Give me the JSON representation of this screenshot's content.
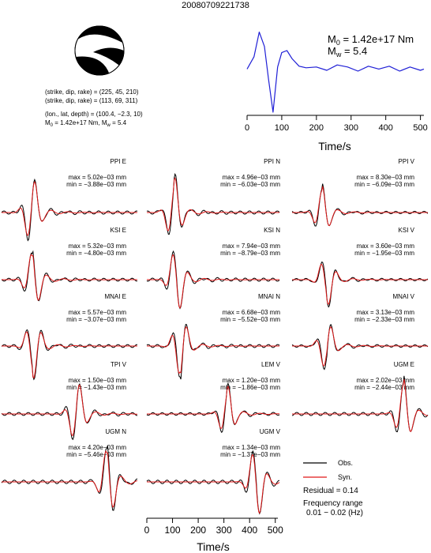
{
  "title": "20080709221738",
  "mechanism": {
    "line1": "(strike, dip, rake) = (225, 45, 210)",
    "line2": "(strike, dip, rake) = (113, 69, 311)",
    "line3": "(lon., lat, depth) = (100.4, −2.3, 10)",
    "line4_m0": "M",
    "line4_m0_sub": "0",
    "line4_m0_val": " = 1.42e+17 Nm, M",
    "line4_mw_sub": "w",
    "line4_mw_val": " = 5.4"
  },
  "stf": {
    "m0_label": "M",
    "m0_sub": "0",
    "m0_value": " = 1.42e+17 Nm",
    "mw_label": "M",
    "mw_sub": "w",
    "mw_value": " = 5.4",
    "xlabel": "Time/s",
    "xticks": [
      "0",
      "100",
      "200",
      "300",
      "400",
      "500"
    ],
    "xrange": [
      0,
      510
    ],
    "color": "#1f1fd6"
  },
  "chart_data": {
    "type": "line",
    "stf_samples_t": [
      0,
      20,
      35,
      50,
      62,
      75,
      88,
      100,
      115,
      130,
      150,
      170,
      200,
      230,
      260,
      290,
      320,
      350,
      380,
      410,
      440,
      470,
      500,
      510
    ],
    "stf_samples_v": [
      0.05,
      0.35,
      0.95,
      0.6,
      -0.2,
      -1.0,
      0.1,
      0.45,
      0.5,
      0.3,
      0.12,
      0.08,
      0.1,
      0.02,
      0.15,
      0.1,
      0.0,
      0.12,
      0.05,
      0.12,
      0.0,
      0.1,
      0.02,
      0.05
    ],
    "stations": [
      {
        "name": "PPI E",
        "max": "max = 5.02e−03 mm",
        "min": "min = −3.88e−03 mm"
      },
      {
        "name": "PPI N",
        "max": "max = 4.96e−03 mm",
        "min": "min = −6.03e−03 mm"
      },
      {
        "name": "PPI V",
        "max": "max = 8.30e−03 mm",
        "min": "min = −6.09e−03 mm"
      },
      {
        "name": "KSI E",
        "max": "max = 5.32e−03 mm",
        "min": "min = −4.80e−03 mm"
      },
      {
        "name": "KSI N",
        "max": "max = 7.94e−03 mm",
        "min": "min = −8.79e−03 mm"
      },
      {
        "name": "KSI V",
        "max": "max = 3.60e−03 mm",
        "min": "min = −1.95e−03 mm"
      },
      {
        "name": "MNAI E",
        "max": "max = 5.57e−03 mm",
        "min": "min = −3.07e−03 mm"
      },
      {
        "name": "MNAI N",
        "max": "max = 6.68e−03 mm",
        "min": "min = −5.52e−03 mm"
      },
      {
        "name": "MNAI V",
        "max": "max = 3.13e−03 mm",
        "min": "min = −2.33e−03 mm"
      },
      {
        "name": "TPI V",
        "max": "max = 1.50e−03 mm",
        "min": "min = −1.43e−03 mm"
      },
      {
        "name": "LEM V",
        "max": "max = 1.20e−03 mm",
        "min": "min = −1.86e−03 mm"
      },
      {
        "name": "UGM E",
        "max": "max = 2.02e−03 mm",
        "min": "min = −2.44e−03 mm"
      },
      {
        "name": "UGM N",
        "max": "max = 4.20e−03 mm",
        "min": "min = −5.46e−03 mm"
      },
      {
        "name": "UGM V",
        "max": "max = 1.34e−03 mm",
        "min": "min = −1.37e−03 mm"
      }
    ]
  },
  "bottom_axis": {
    "xticks": [
      "0",
      "100",
      "200",
      "300",
      "400",
      "500"
    ],
    "xlabel": "Time/s"
  },
  "legend": {
    "obs": "Obs.",
    "syn": "Syn.",
    "obs_color": "#000000",
    "syn_color": "#e01818"
  },
  "info": {
    "residual": "Residual = 0.14",
    "freq_title": "Frequency range",
    "freq_value": "0.01 − 0.02 (Hz)"
  }
}
